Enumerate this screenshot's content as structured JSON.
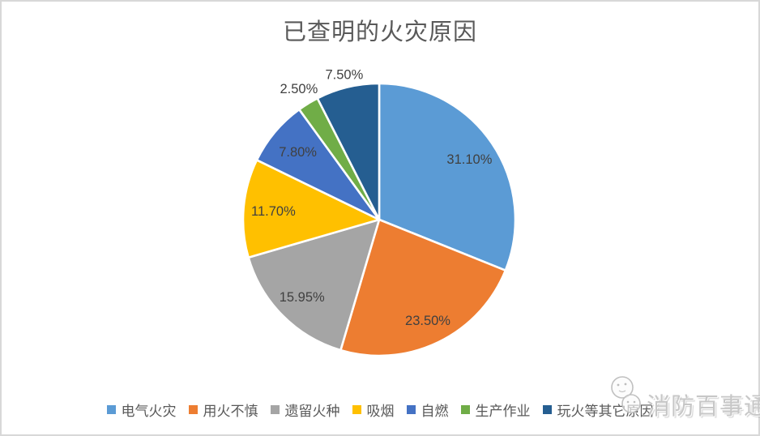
{
  "page": {
    "watermark_text": "消防百事通"
  },
  "chart_data": {
    "type": "pie",
    "title": "已查明的火灾原因",
    "start_angle_deg": 0,
    "direction": "clockwise",
    "legend_position": "bottom",
    "grid": false,
    "title_color": "#595959",
    "label_color": "#404040",
    "slice_border_color": "#FFFFFF",
    "slices": [
      {
        "name": "电气火灾",
        "value": 31.1,
        "label": "31.10%",
        "color": "#5B9BD5",
        "label_position": "inside",
        "label_radius": 0.8
      },
      {
        "name": "用火不慎",
        "value": 23.5,
        "label": "23.50%",
        "color": "#ED7D31",
        "label_position": "inside",
        "label_radius": 0.82
      },
      {
        "name": "遗留火种",
        "value": 15.95,
        "label": "15.95%",
        "color": "#A5A5A5",
        "label_position": "inside",
        "label_radius": 0.8
      },
      {
        "name": "吸烟",
        "value": 11.7,
        "label": "11.70%",
        "color": "#FFC000",
        "label_position": "inside",
        "label_radius": 0.78
      },
      {
        "name": "自燃",
        "value": 7.8,
        "label": "7.80%",
        "color": "#4472C4",
        "label_position": "inside",
        "label_radius": 0.78
      },
      {
        "name": "生产作业",
        "value": 2.5,
        "label": "2.50%",
        "color": "#70AD47",
        "label_position": "outside",
        "label_radius": 1.13
      },
      {
        "name": "玩火等其它原因",
        "value": 7.5,
        "label": "7.50%",
        "color": "#255E91",
        "label_position": "outside",
        "label_radius": 1.1
      }
    ]
  }
}
